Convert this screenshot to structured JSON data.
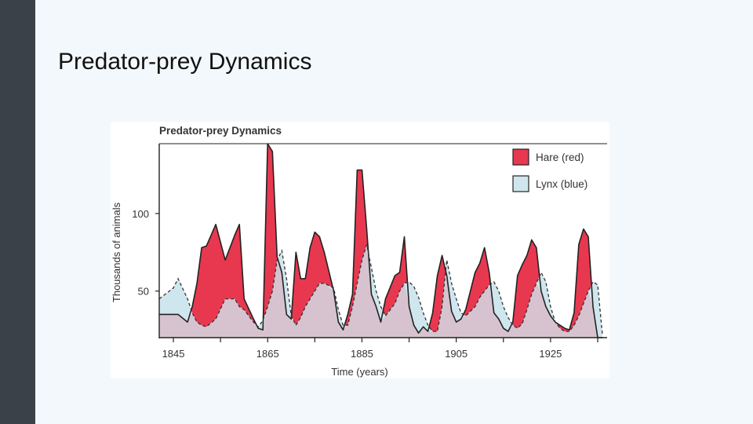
{
  "slide": {
    "title": "Predator-prey Dynamics",
    "sidebar_color": "#3a4148",
    "background_color": "#f3f8fc"
  },
  "chart_data": {
    "type": "area",
    "title": "Predator-prey Dynamics",
    "xlabel": "Time (years)",
    "ylabel": "Thousands of animals",
    "xlim": [
      1842,
      1937
    ],
    "ylim": [
      20,
      145
    ],
    "xticks": [
      1845,
      1865,
      1885,
      1905,
      1925
    ],
    "minor_xticks": [
      1855,
      1875,
      1895,
      1915,
      1935
    ],
    "yticks": [
      50,
      100
    ],
    "grid": false,
    "legend": "top-right",
    "series": [
      {
        "name": "Hare (red)",
        "color": "#e8384f",
        "x": [
          1842,
          1845,
          1846,
          1848,
          1849,
          1850,
          1851,
          1852,
          1854,
          1856,
          1857,
          1858,
          1859,
          1860,
          1862,
          1863,
          1864,
          1865,
          1866,
          1867,
          1868,
          1869,
          1870,
          1871,
          1872,
          1873,
          1874,
          1875,
          1876,
          1877,
          1879,
          1880,
          1881,
          1882,
          1883,
          1884,
          1885,
          1886,
          1887,
          1888,
          1889,
          1890,
          1892,
          1893,
          1894,
          1895,
          1896,
          1897,
          1898,
          1899,
          1900,
          1901,
          1902,
          1903,
          1904,
          1905,
          1906,
          1907,
          1909,
          1910,
          1911,
          1912,
          1913,
          1914,
          1915,
          1916,
          1917,
          1918,
          1919,
          1920,
          1921,
          1922,
          1923,
          1924,
          1925,
          1926,
          1927,
          1928,
          1929,
          1930,
          1931,
          1932,
          1933,
          1934,
          1935,
          1936
        ],
        "values": [
          35,
          35,
          35,
          30,
          40,
          55,
          78,
          79,
          93,
          70,
          78,
          86,
          93,
          45,
          32,
          26,
          25,
          145,
          140,
          72,
          62,
          35,
          32,
          75,
          58,
          58,
          78,
          88,
          85,
          75,
          50,
          30,
          25,
          35,
          48,
          128,
          128,
          90,
          48,
          40,
          30,
          45,
          60,
          62,
          85,
          40,
          28,
          23,
          27,
          24,
          36,
          60,
          73,
          60,
          37,
          30,
          32,
          38,
          62,
          68,
          78,
          62,
          36,
          32,
          26,
          24,
          30,
          60,
          67,
          73,
          83,
          78,
          50,
          40,
          34,
          30,
          28,
          26,
          25,
          36,
          80,
          90,
          85,
          40,
          20,
          20
        ]
      },
      {
        "name": "Lynx (blue)",
        "color": "#d0e6ee",
        "x": [
          1842,
          1845,
          1846,
          1848,
          1849,
          1850,
          1851,
          1852,
          1854,
          1856,
          1857,
          1858,
          1859,
          1860,
          1862,
          1863,
          1864,
          1865,
          1866,
          1867,
          1868,
          1869,
          1870,
          1871,
          1872,
          1873,
          1874,
          1875,
          1876,
          1877,
          1879,
          1880,
          1881,
          1882,
          1883,
          1884,
          1885,
          1886,
          1887,
          1888,
          1889,
          1890,
          1892,
          1893,
          1894,
          1895,
          1896,
          1897,
          1898,
          1899,
          1900,
          1901,
          1902,
          1903,
          1904,
          1905,
          1906,
          1907,
          1909,
          1910,
          1911,
          1912,
          1913,
          1914,
          1915,
          1916,
          1917,
          1918,
          1919,
          1920,
          1921,
          1922,
          1923,
          1924,
          1925,
          1926,
          1927,
          1928,
          1929,
          1930,
          1931,
          1932,
          1933,
          1934,
          1935,
          1936
        ],
        "values": [
          45,
          52,
          58,
          45,
          36,
          30,
          28,
          27,
          32,
          45,
          45,
          45,
          40,
          38,
          30,
          27,
          31,
          40,
          50,
          70,
          76,
          58,
          34,
          28,
          33,
          40,
          45,
          50,
          55,
          55,
          52,
          38,
          28,
          28,
          40,
          55,
          70,
          80,
          65,
          50,
          40,
          34,
          42,
          50,
          55,
          56,
          53,
          46,
          36,
          28,
          24,
          24,
          40,
          70,
          55,
          45,
          36,
          34,
          40,
          46,
          50,
          54,
          56,
          50,
          40,
          33,
          28,
          26,
          29,
          38,
          48,
          55,
          62,
          56,
          40,
          30,
          26,
          24,
          24,
          28,
          34,
          42,
          50,
          56,
          54,
          22
        ]
      }
    ]
  }
}
